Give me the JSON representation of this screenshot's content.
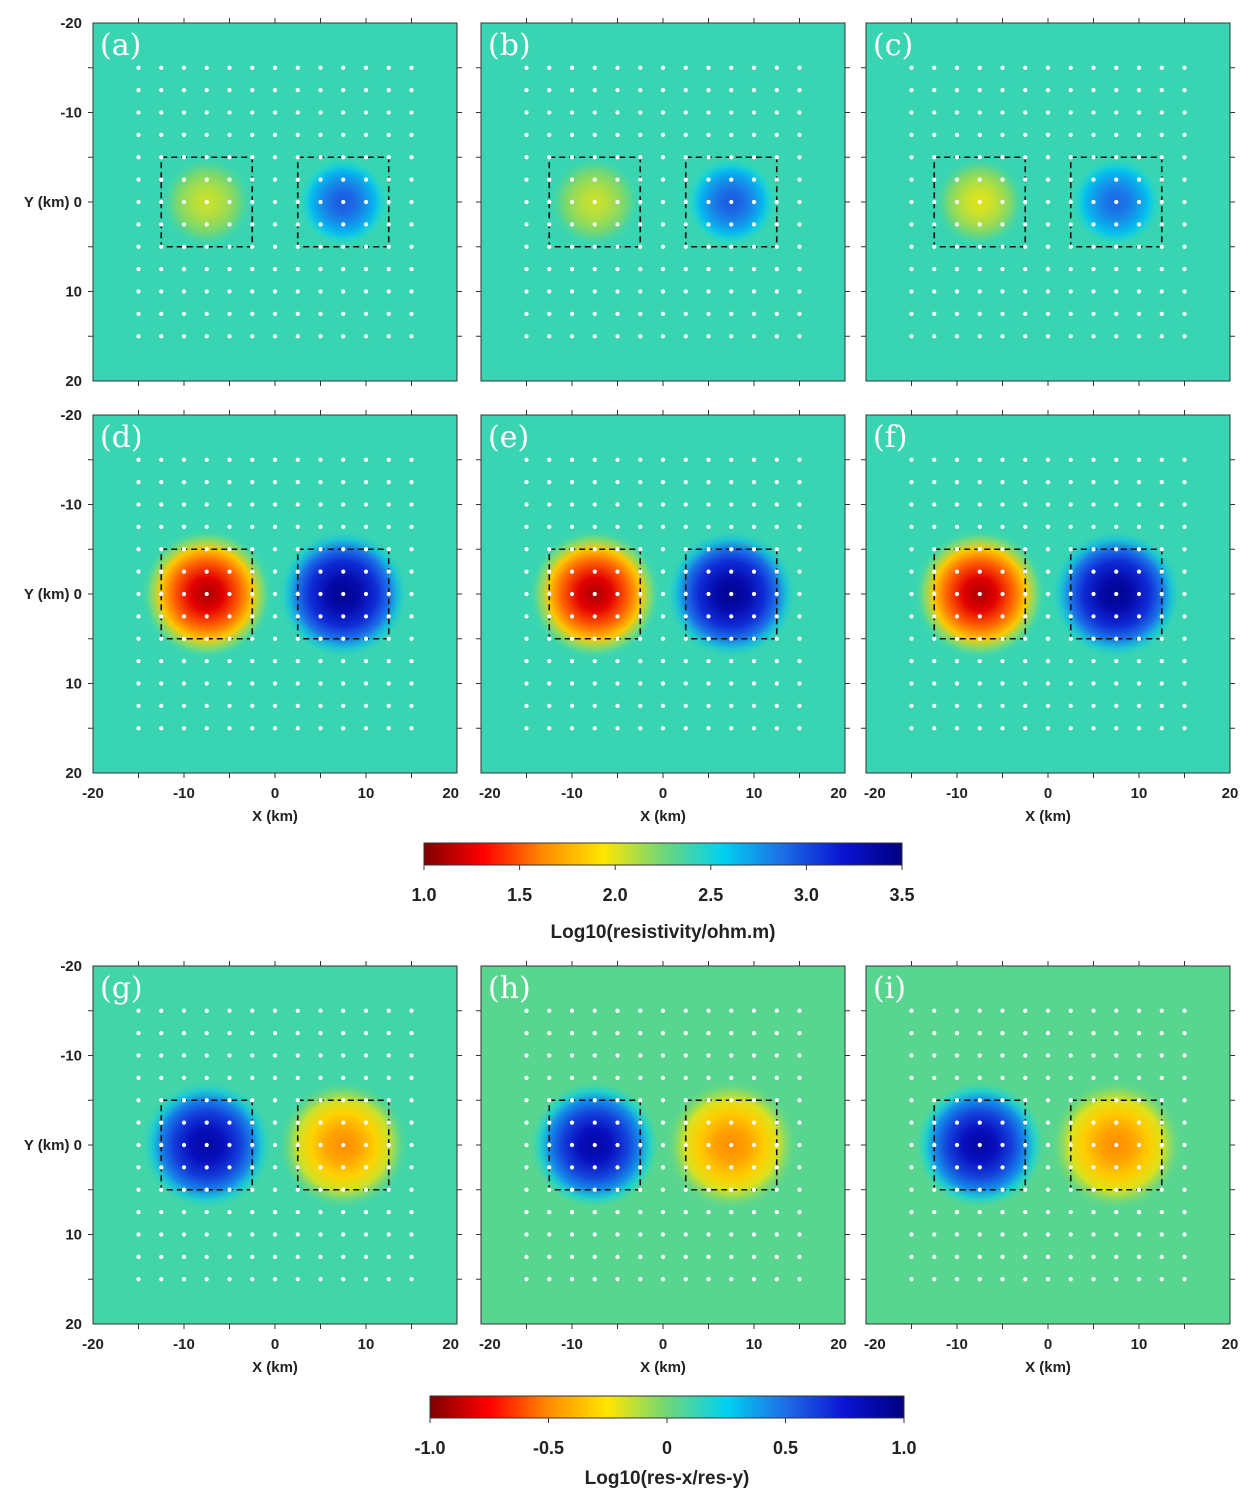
{
  "chart_data": {
    "type": "heatmap",
    "x_axis": {
      "label": "X (km)",
      "range": [
        -20,
        20
      ],
      "ticks": [
        -20,
        -10,
        0,
        10,
        20
      ],
      "tick_labels": [
        "-20",
        "-10",
        "0",
        "10",
        "20"
      ]
    },
    "y_axis": {
      "label": "Y (km)",
      "range": [
        -20,
        20
      ],
      "ticks": [
        -20,
        -10,
        0,
        10,
        20
      ],
      "tick_labels": [
        "-20",
        "-10",
        "0",
        "10",
        "20"
      ]
    },
    "stations": {
      "x_range": [
        -15,
        15
      ],
      "y_range": [
        -15,
        15
      ],
      "spacing_km": 2.5
    },
    "blocks": [
      {
        "name": "left-block",
        "x": [
          -12.5,
          -2.5
        ],
        "y": [
          -5,
          5
        ]
      },
      {
        "name": "right-block",
        "x": [
          2.5,
          12.5
        ],
        "y": [
          -5,
          5
        ]
      }
    ],
    "panels": [
      {
        "label": "(a)",
        "colorbar": 0,
        "left_value": 2.05,
        "right_value": 2.95,
        "background": 2.4,
        "spread": 1.0
      },
      {
        "label": "(b)",
        "colorbar": 0,
        "left_value": 2.05,
        "right_value": 2.95,
        "background": 2.4,
        "spread": 1.0
      },
      {
        "label": "(c)",
        "colorbar": 0,
        "left_value": 2.0,
        "right_value": 2.9,
        "background": 2.4,
        "spread": 1.0
      },
      {
        "label": "(d)",
        "colorbar": 0,
        "left_value": 1.1,
        "right_value": 3.45,
        "background": 2.4,
        "spread": 1.45
      },
      {
        "label": "(e)",
        "colorbar": 0,
        "left_value": 1.1,
        "right_value": 3.45,
        "background": 2.4,
        "spread": 1.45
      },
      {
        "label": "(f)",
        "colorbar": 0,
        "left_value": 1.1,
        "right_value": 3.45,
        "background": 2.4,
        "spread": 1.45
      },
      {
        "label": "(g)",
        "colorbar": 1,
        "left_value": 0.9,
        "right_value": -0.5,
        "background": 0.1,
        "spread": 1.45
      },
      {
        "label": "(h)",
        "colorbar": 1,
        "left_value": 0.9,
        "right_value": -0.5,
        "background": 0.05,
        "spread": 1.45
      },
      {
        "label": "(i)",
        "colorbar": 1,
        "left_value": 0.9,
        "right_value": -0.5,
        "background": 0.05,
        "spread": 1.45
      }
    ],
    "colorbars": [
      {
        "min": 1.0,
        "max": 3.5,
        "ticks": [
          1.0,
          1.5,
          2.0,
          2.5,
          3.0,
          3.5
        ],
        "tick_labels": [
          "1.0",
          "1.5",
          "2.0",
          "2.5",
          "3.0",
          "3.5"
        ],
        "title": "Log10(resistivity/ohm.m)",
        "colormap": "jet_reversed"
      },
      {
        "min": -1.0,
        "max": 1.0,
        "ticks": [
          -1.0,
          -0.5,
          0,
          0.5,
          1.0
        ],
        "tick_labels": [
          "-1.0",
          "-0.5",
          "0",
          "0.5",
          "1.0"
        ],
        "title": "Log10(res-x/res-y)",
        "colormap": "jet_reversed"
      }
    ]
  }
}
